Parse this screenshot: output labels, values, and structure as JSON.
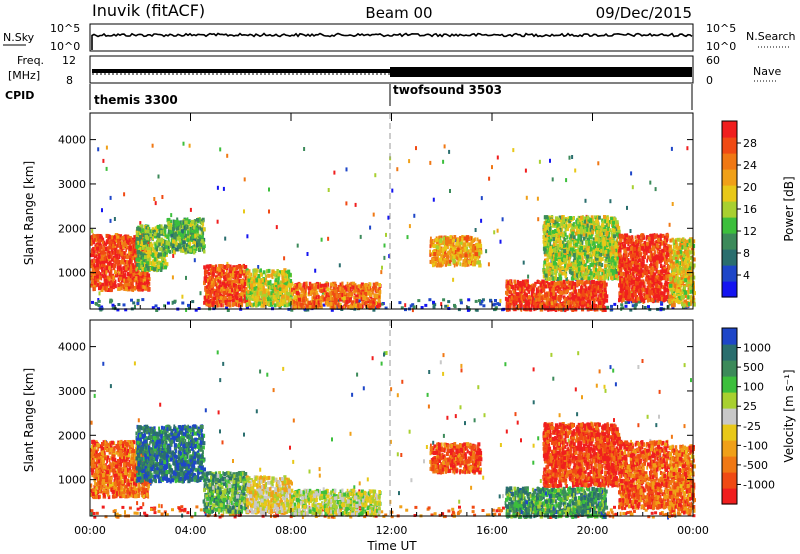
{
  "header": {
    "station": "Inuvik (fitACF)",
    "beam": "Beam 00",
    "date": "09/Dec/2015"
  },
  "strip_panels": {
    "nsky": {
      "left_label": "N.Sky",
      "left_ticks": [
        "10^5",
        "10^0"
      ],
      "right_ticks": [
        "10^5",
        "10^0"
      ],
      "right_label": "N.Search"
    },
    "freq": {
      "left_label_1": "Freq.",
      "left_label_2": "[MHz]",
      "left_ticks": [
        "12",
        "8"
      ],
      "right_ticks": [
        "60",
        "0"
      ],
      "right_label": "Nave"
    },
    "cpid": {
      "label": "CPID",
      "segments": [
        {
          "name": "themis 3300",
          "start_hour": 0
        },
        {
          "name": "twofsound 3503",
          "start_hour": 12
        }
      ]
    }
  },
  "chart_data": [
    {
      "type": "heatmap",
      "name": "Power",
      "xlabel": "",
      "ylabel": "Slant Range [km]",
      "x_ticks": [
        "00:00",
        "04:00",
        "08:00",
        "12:00",
        "16:00",
        "20:00",
        "00:00"
      ],
      "x_range_hours": [
        0,
        24
      ],
      "y_ticks": [
        1000,
        2000,
        3000,
        4000
      ],
      "ylim": [
        180,
        4600
      ],
      "colorbar": {
        "label": "Power [dB]",
        "ticks": [
          "4",
          "8",
          "12",
          "16",
          "20",
          "24",
          "28"
        ],
        "colors": [
          "#1414f0",
          "#1e46c8",
          "#2a6e6e",
          "#3c8a5a",
          "#3cbf3c",
          "#a8d030",
          "#e8c818",
          "#f0a018",
          "#f07814",
          "#f04a14",
          "#f01e1e"
        ]
      },
      "regions": [
        {
          "h0": 0.0,
          "h1": 2.3,
          "r0": 650,
          "r1": 1900,
          "level": 0.88
        },
        {
          "h0": 1.8,
          "h1": 3.0,
          "r0": 1100,
          "r1": 2100,
          "level": 0.45
        },
        {
          "h0": 3.0,
          "h1": 4.5,
          "r0": 1500,
          "r1": 2250,
          "level": 0.4
        },
        {
          "h0": 4.5,
          "h1": 6.2,
          "r0": 300,
          "r1": 1200,
          "level": 0.85
        },
        {
          "h0": 6.2,
          "h1": 8.0,
          "r0": 300,
          "r1": 1100,
          "level": 0.55
        },
        {
          "h0": 8.0,
          "h1": 11.5,
          "r0": 250,
          "r1": 800,
          "level": 0.8
        },
        {
          "h0": 13.5,
          "h1": 15.5,
          "r0": 1200,
          "r1": 1850,
          "level": 0.7
        },
        {
          "h0": 16.5,
          "h1": 20.5,
          "r0": 200,
          "r1": 850,
          "level": 0.9
        },
        {
          "h0": 18.0,
          "h1": 21.0,
          "r0": 900,
          "r1": 2300,
          "level": 0.5
        },
        {
          "h0": 21.0,
          "h1": 23.0,
          "r0": 400,
          "r1": 1900,
          "level": 0.92
        },
        {
          "h0": 23.0,
          "h1": 24.0,
          "r0": 300,
          "r1": 1800,
          "level": 0.6
        }
      ]
    },
    {
      "type": "heatmap",
      "name": "Velocity",
      "xlabel": "Time UT",
      "ylabel": "Slant Range [km]",
      "x_ticks": [
        "00:00",
        "04:00",
        "08:00",
        "12:00",
        "16:00",
        "20:00",
        "00:00"
      ],
      "x_range_hours": [
        0,
        24
      ],
      "y_ticks": [
        1000,
        2000,
        3000,
        4000
      ],
      "ylim": [
        180,
        4600
      ],
      "colorbar": {
        "label": "Velocity [m s⁻¹]",
        "ticks": [
          "-1000",
          "-500",
          "-100",
          "-25",
          "25",
          "100",
          "500",
          "1000"
        ],
        "colors": [
          "#f01e1e",
          "#f04a14",
          "#f07814",
          "#f0a018",
          "#e8c818",
          "#c8c8c8",
          "#a8d030",
          "#3cbf3c",
          "#3c8a5a",
          "#2a6e6e",
          "#1e46c8"
        ]
      },
      "regions": [
        {
          "h0": 0.0,
          "h1": 2.3,
          "r0": 650,
          "r1": 1900,
          "level": 0.2
        },
        {
          "h0": 1.8,
          "h1": 4.5,
          "r0": 1000,
          "r1": 2250,
          "level": 0.85
        },
        {
          "h0": 4.5,
          "h1": 6.2,
          "r0": 300,
          "r1": 1200,
          "level": 0.7
        },
        {
          "h0": 6.2,
          "h1": 8.0,
          "r0": 300,
          "r1": 1100,
          "level": 0.45
        },
        {
          "h0": 8.0,
          "h1": 11.5,
          "r0": 250,
          "r1": 800,
          "level": 0.55
        },
        {
          "h0": 13.5,
          "h1": 15.5,
          "r0": 1200,
          "r1": 1850,
          "level": 0.15
        },
        {
          "h0": 16.5,
          "h1": 20.5,
          "r0": 200,
          "r1": 850,
          "level": 0.75
        },
        {
          "h0": 18.0,
          "h1": 21.0,
          "r0": 900,
          "r1": 2300,
          "level": 0.1
        },
        {
          "h0": 21.0,
          "h1": 23.0,
          "r0": 400,
          "r1": 1900,
          "level": 0.15
        },
        {
          "h0": 23.0,
          "h1": 24.0,
          "r0": 300,
          "r1": 1800,
          "level": 0.2
        }
      ]
    }
  ]
}
